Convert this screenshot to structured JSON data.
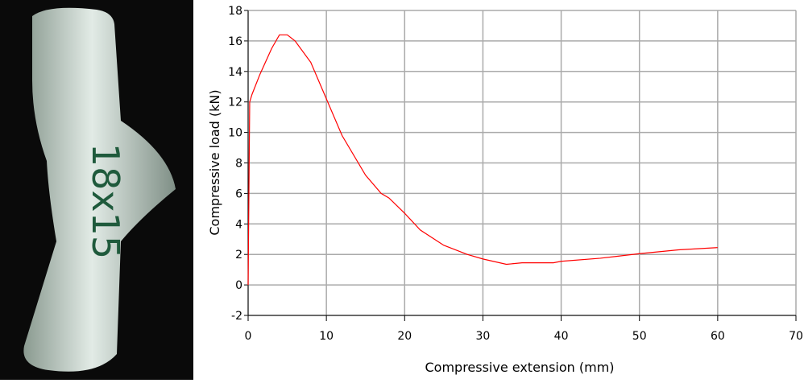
{
  "photo": {
    "label": "18x15"
  },
  "chart_data": {
    "type": "line",
    "xlabel": "Compressive extension (mm)",
    "ylabel": "Compressive load (kN)",
    "xlim": [
      0,
      70
    ],
    "xticks": [
      0,
      10,
      20,
      30,
      40,
      50,
      60,
      70
    ],
    "ylim": [
      -2,
      18
    ],
    "yticks": [
      -2,
      0,
      2,
      4,
      6,
      8,
      10,
      12,
      14,
      16,
      18
    ],
    "grid": true,
    "series": [
      {
        "color": "#ff0000",
        "x": [
          0,
          0.2,
          0.5,
          1.5,
          3,
          4,
          5,
          6,
          8,
          10,
          12,
          15,
          17,
          18,
          20,
          22,
          25,
          28,
          30,
          33,
          35,
          39,
          40,
          45,
          50,
          55,
          60
        ],
        "values": [
          0,
          12,
          12.5,
          13.8,
          15.5,
          16.4,
          16.4,
          16,
          14.6,
          12.2,
          9.8,
          7.2,
          6,
          5.7,
          4.7,
          3.6,
          2.6,
          2,
          1.7,
          1.35,
          1.45,
          1.45,
          1.55,
          1.75,
          2.05,
          2.3,
          2.45
        ]
      }
    ]
  }
}
